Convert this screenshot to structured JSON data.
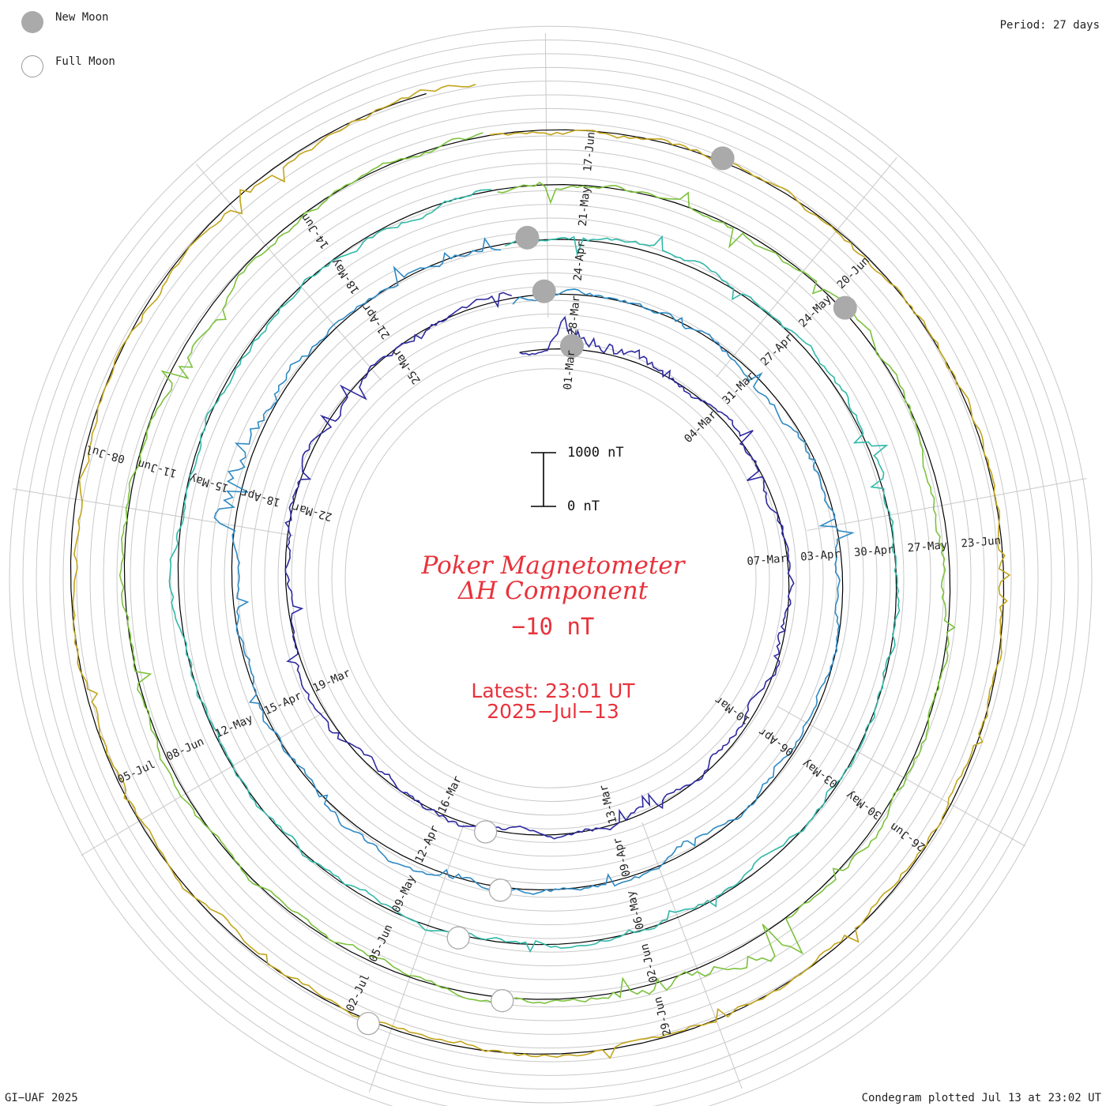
{
  "legend": {
    "new_moon": "New Moon",
    "full_moon": "Full Moon"
  },
  "period_text": "Period: 27 days",
  "title_line1": "Poker Magnetometer",
  "title_line2": "ΔH Component",
  "offset_text": "−10 nT",
  "latest_line1": "Latest: 23:01 UT",
  "latest_line2": "2025−Jul−13",
  "scale": {
    "top_label": "1000 nT",
    "bottom_label": "0 nT"
  },
  "footer_left": "GI−UAF 2025",
  "footer_right": "Condegram plotted Jul 13 at 23:02 UT",
  "colors": {
    "grid": "#c8c8c8",
    "baseline": "#000000",
    "text_red": "#e8323c",
    "new_moon": "#aaaaaa",
    "rotations": [
      "#15123a",
      "#2e2aa0",
      "#2f8ac4",
      "#31b8a8",
      "#7cc23c",
      "#c2a51c",
      "#bf7a1c",
      "#c02a1c"
    ]
  },
  "chart_data": {
    "type": "condegram",
    "period_days": 27,
    "scale_nT": [
      0,
      1000
    ],
    "rotations": [
      {
        "start": "28-Feb",
        "end": "27-Mar",
        "date_labels": [
          "01-Mar",
          "04-Mar",
          "07-Mar",
          "10-Mar",
          "13-Mar",
          "16-Mar",
          "19-Mar",
          "22-Mar",
          "25-Mar"
        ]
      },
      {
        "start": "27-Mar",
        "end": "23-Apr",
        "date_labels": [
          "28-Mar",
          "31-Mar",
          "03-Apr",
          "06-Apr",
          "09-Apr",
          "12-Apr",
          "15-Apr",
          "18-Apr",
          "21-Apr"
        ]
      },
      {
        "start": "23-Apr",
        "end": "20-May",
        "date_labels": [
          "24-Apr",
          "27-Apr",
          "30-Apr",
          "03-May",
          "06-May",
          "09-May",
          "12-May",
          "15-May",
          "18-May"
        ]
      },
      {
        "start": "20-May",
        "end": "16-Jun",
        "date_labels": [
          "21-May",
          "24-May",
          "27-May",
          "30-May",
          "02-Jun",
          "05-Jun",
          "08-Jun",
          "11-Jun",
          "14-Jun"
        ]
      },
      {
        "start": "16-Jun",
        "end": "13-Jul",
        "date_labels": [
          "17-Jun",
          "20-Jun",
          "23-Jun",
          "26-Jun",
          "29-Jun",
          "02-Jul",
          "05-Jul",
          "08-Jul"
        ]
      }
    ],
    "new_moons": [
      "27-Feb",
      "27-Mar",
      "27-Apr",
      "27-May",
      "25-Jun"
    ],
    "full_moons": [
      "14-Mar",
      "13-Apr",
      "12-May",
      "11-Jun",
      "10-Jul"
    ],
    "disturbances": [
      {
        "date": "01-Mar",
        "peak_nT": 500
      },
      {
        "date": "19-Apr",
        "peak_nT": 420
      },
      {
        "date": "01-Jun",
        "peak_nT": 700
      },
      {
        "date": "11-Jul",
        "peak_nT": 450
      }
    ]
  }
}
